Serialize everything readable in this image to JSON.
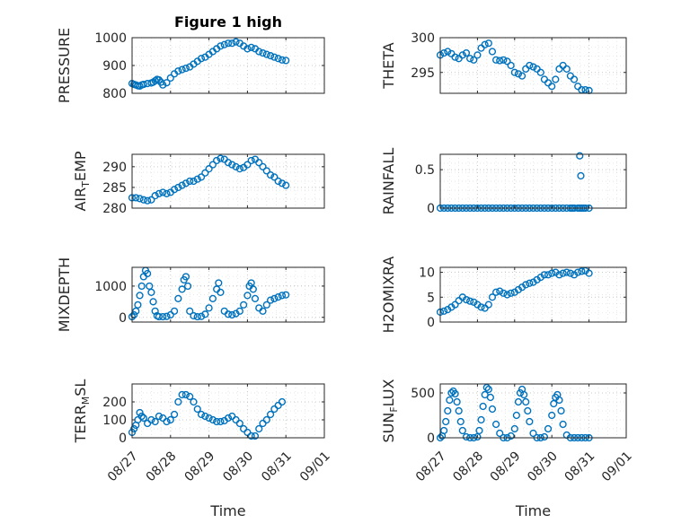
{
  "figure": {
    "title": "Figure 1 high",
    "width": 778,
    "height": 583
  },
  "colors": {
    "marker": "#0072BD",
    "axis": "#262626",
    "grid": "#c8c8c8"
  },
  "chart_data": [
    {
      "type": "scatter",
      "id": "pressure",
      "ylabel": "PRESSURE",
      "ylabel_main": "PRESSURE",
      "ylabel_sub": "",
      "ylabel_tail": "",
      "title": "Figure 1 high",
      "x_range": [
        "08/27",
        "08/31"
      ],
      "ylim": [
        800,
        1000
      ],
      "yticks": [
        "800",
        "900",
        "1000"
      ],
      "xticks": [],
      "xlabel": "",
      "x": [
        0.0,
        0.05,
        0.1,
        0.15,
        0.2,
        0.25,
        0.3,
        0.4,
        0.5,
        0.55,
        0.6,
        0.65,
        0.7,
        0.75,
        0.8,
        0.9,
        1.0,
        1.1,
        1.2,
        1.3,
        1.4,
        1.5,
        1.6,
        1.7,
        1.8,
        1.9,
        2.0,
        2.1,
        2.2,
        2.3,
        2.4,
        2.5,
        2.6,
        2.7,
        2.8,
        2.9,
        3.0,
        3.1,
        3.2,
        3.3,
        3.4,
        3.5,
        3.6,
        3.7,
        3.8,
        3.9,
        4.0
      ],
      "y": [
        835,
        832,
        830,
        827,
        826,
        830,
        832,
        835,
        837,
        840,
        845,
        850,
        848,
        840,
        830,
        838,
        855,
        870,
        880,
        885,
        890,
        895,
        905,
        915,
        925,
        930,
        940,
        950,
        960,
        970,
        975,
        980,
        980,
        985,
        980,
        970,
        960,
        965,
        960,
        950,
        945,
        940,
        935,
        930,
        925,
        920,
        918
      ]
    },
    {
      "type": "scatter",
      "id": "theta",
      "ylabel": "THETA",
      "ylabel_main": "THETA",
      "ylabel_sub": "",
      "ylabel_tail": "",
      "x_range": [
        "08/27",
        "08/31"
      ],
      "ylim": [
        292,
        300
      ],
      "yticks": [
        "295",
        "300"
      ],
      "xticks": [],
      "xlabel": "",
      "x": [
        0.0,
        0.1,
        0.2,
        0.3,
        0.4,
        0.5,
        0.6,
        0.7,
        0.8,
        0.9,
        1.0,
        1.1,
        1.2,
        1.3,
        1.4,
        1.5,
        1.6,
        1.7,
        1.8,
        1.9,
        2.0,
        2.1,
        2.2,
        2.3,
        2.4,
        2.5,
        2.6,
        2.7,
        2.8,
        2.9,
        3.0,
        3.1,
        3.2,
        3.3,
        3.4,
        3.5,
        3.6,
        3.7,
        3.8,
        3.9,
        4.0
      ],
      "y": [
        297.5,
        297.8,
        298.0,
        297.7,
        297.2,
        297.0,
        297.5,
        297.8,
        297.0,
        296.8,
        297.5,
        298.5,
        299.0,
        299.2,
        298.0,
        296.8,
        296.7,
        296.8,
        296.6,
        296.0,
        295.0,
        294.8,
        294.5,
        295.5,
        296.0,
        295.8,
        295.5,
        295.0,
        294.0,
        293.5,
        293.0,
        294.0,
        295.5,
        296.0,
        295.5,
        294.5,
        294.0,
        293.0,
        292.5,
        292.5,
        292.4
      ]
    },
    {
      "type": "scatter",
      "id": "air_temp",
      "ylabel": "AIR_TEMP",
      "ylabel_main": "AIR",
      "ylabel_sub": "T",
      "ylabel_tail": "EMP",
      "x_range": [
        "08/27",
        "08/31"
      ],
      "ylim": [
        280,
        293
      ],
      "yticks": [
        "280",
        "285",
        "290"
      ],
      "xticks": [],
      "xlabel": "",
      "x": [
        0.0,
        0.1,
        0.2,
        0.3,
        0.4,
        0.5,
        0.6,
        0.7,
        0.8,
        0.9,
        1.0,
        1.1,
        1.2,
        1.3,
        1.4,
        1.5,
        1.6,
        1.7,
        1.8,
        1.9,
        2.0,
        2.1,
        2.2,
        2.3,
        2.4,
        2.5,
        2.6,
        2.7,
        2.8,
        2.9,
        3.0,
        3.1,
        3.2,
        3.3,
        3.4,
        3.5,
        3.6,
        3.7,
        3.8,
        3.9,
        4.0
      ],
      "y": [
        282.5,
        282.5,
        282.3,
        282.0,
        281.8,
        282.0,
        283.0,
        283.5,
        283.8,
        283.5,
        283.8,
        284.5,
        285.0,
        285.5,
        286.0,
        286.5,
        286.5,
        287.0,
        287.5,
        288.5,
        289.5,
        290.5,
        291.5,
        292.0,
        291.8,
        291.0,
        290.5,
        290.0,
        289.5,
        289.8,
        290.5,
        291.5,
        291.8,
        291.0,
        290.0,
        289.0,
        288.0,
        287.5,
        286.5,
        286.0,
        285.5
      ]
    },
    {
      "type": "scatter",
      "id": "rainfall",
      "ylabel": "RAINFALL",
      "ylabel_main": "RAINFALL",
      "ylabel_sub": "",
      "ylabel_tail": "",
      "x_range": [
        "08/27",
        "08/31"
      ],
      "ylim": [
        0,
        0.7
      ],
      "yticks": [
        "0",
        "0.5"
      ],
      "xticks": [],
      "xlabel": "",
      "x": [
        0.0,
        0.1,
        0.2,
        0.3,
        0.4,
        0.5,
        0.6,
        0.7,
        0.8,
        0.9,
        1.0,
        1.1,
        1.2,
        1.3,
        1.4,
        1.5,
        1.6,
        1.7,
        1.8,
        1.9,
        2.0,
        2.1,
        2.2,
        2.3,
        2.4,
        2.5,
        2.6,
        2.7,
        2.8,
        2.9,
        3.0,
        3.1,
        3.2,
        3.3,
        3.4,
        3.5,
        3.55,
        3.6,
        3.7,
        3.75,
        3.8,
        3.85,
        3.9,
        4.0,
        3.75,
        3.78
      ],
      "y": [
        0,
        0,
        0,
        0,
        0,
        0,
        0,
        0,
        0,
        0,
        0,
        0,
        0,
        0,
        0,
        0,
        0,
        0,
        0,
        0,
        0,
        0,
        0,
        0,
        0,
        0,
        0,
        0,
        0,
        0,
        0,
        0,
        0,
        0,
        0,
        0,
        0,
        0,
        0,
        0,
        0,
        0,
        0,
        0,
        0.68,
        0.42
      ]
    },
    {
      "type": "scatter",
      "id": "mixdepth",
      "ylabel": "MIXDEPTH",
      "ylabel_main": "MIXDEPTH",
      "ylabel_sub": "",
      "ylabel_tail": "",
      "x_range": [
        "08/27",
        "08/31"
      ],
      "ylim": [
        -150,
        1600
      ],
      "yticks": [
        "0",
        "1000"
      ],
      "xticks": [],
      "xlabel": "",
      "x": [
        0.0,
        0.05,
        0.1,
        0.15,
        0.2,
        0.25,
        0.3,
        0.35,
        0.4,
        0.45,
        0.5,
        0.55,
        0.6,
        0.65,
        0.7,
        0.8,
        0.9,
        1.0,
        1.1,
        1.2,
        1.3,
        1.35,
        1.4,
        1.45,
        1.5,
        1.6,
        1.7,
        1.8,
        1.9,
        2.0,
        2.1,
        2.2,
        2.25,
        2.3,
        2.4,
        2.5,
        2.6,
        2.7,
        2.8,
        2.9,
        3.0,
        3.05,
        3.1,
        3.15,
        3.2,
        3.3,
        3.4,
        3.5,
        3.6,
        3.7,
        3.8,
        3.9,
        4.0
      ],
      "y": [
        20,
        80,
        200,
        400,
        700,
        1000,
        1300,
        1500,
        1400,
        1000,
        800,
        500,
        200,
        50,
        20,
        20,
        30,
        80,
        200,
        600,
        900,
        1200,
        1300,
        1000,
        200,
        50,
        20,
        30,
        100,
        300,
        600,
        900,
        1100,
        800,
        200,
        100,
        80,
        120,
        200,
        400,
        700,
        1000,
        1100,
        900,
        600,
        300,
        200,
        400,
        550,
        600,
        650,
        700,
        720
      ]
    },
    {
      "type": "scatter",
      "id": "h2omixra",
      "ylabel": "H2OMIXRA",
      "ylabel_main": "H2OMIXRA",
      "ylabel_sub": "",
      "ylabel_tail": "",
      "x_range": [
        "08/27",
        "08/31"
      ],
      "ylim": [
        0,
        11
      ],
      "yticks": [
        "0",
        "5",
        "10"
      ],
      "xticks": [],
      "xlabel": "",
      "x": [
        0.0,
        0.1,
        0.2,
        0.3,
        0.4,
        0.5,
        0.6,
        0.7,
        0.8,
        0.9,
        1.0,
        1.1,
        1.2,
        1.3,
        1.4,
        1.5,
        1.6,
        1.7,
        1.8,
        1.9,
        2.0,
        2.1,
        2.2,
        2.3,
        2.4,
        2.5,
        2.6,
        2.7,
        2.8,
        2.9,
        3.0,
        3.1,
        3.2,
        3.3,
        3.4,
        3.5,
        3.6,
        3.7,
        3.8,
        3.9,
        4.0
      ],
      "y": [
        2.0,
        2.2,
        2.5,
        3.0,
        3.5,
        4.3,
        5.0,
        4.5,
        4.2,
        4.0,
        3.5,
        3.0,
        2.8,
        3.5,
        5.0,
        6.0,
        6.2,
        5.8,
        5.5,
        5.8,
        6.0,
        6.5,
        7.0,
        7.5,
        7.8,
        8.0,
        8.5,
        9.0,
        9.5,
        9.5,
        9.8,
        10.0,
        9.5,
        9.8,
        10.0,
        9.8,
        9.5,
        10.0,
        10.2,
        10.3,
        9.8
      ]
    },
    {
      "type": "scatter",
      "id": "terr_msl",
      "ylabel": "TERR_MSL",
      "ylabel_main": "TERR",
      "ylabel_sub": "M",
      "ylabel_tail": "SL",
      "x_range": [
        "08/27",
        "08/31"
      ],
      "ylim": [
        0,
        300
      ],
      "yticks": [
        "0",
        "100",
        "200"
      ],
      "xticks": [
        "08/27",
        "08/28",
        "08/29",
        "08/30",
        "08/31",
        "09/01"
      ],
      "xlabel": "Time",
      "x": [
        0.0,
        0.05,
        0.1,
        0.15,
        0.2,
        0.25,
        0.3,
        0.4,
        0.5,
        0.6,
        0.7,
        0.8,
        0.9,
        1.0,
        1.1,
        1.2,
        1.3,
        1.4,
        1.5,
        1.6,
        1.7,
        1.8,
        1.9,
        2.0,
        2.1,
        2.2,
        2.3,
        2.4,
        2.5,
        2.6,
        2.7,
        2.8,
        2.9,
        3.0,
        3.1,
        3.2,
        3.3,
        3.4,
        3.5,
        3.6,
        3.7,
        3.8,
        3.9
      ],
      "y": [
        30,
        50,
        70,
        100,
        140,
        120,
        110,
        80,
        100,
        90,
        120,
        110,
        90,
        100,
        130,
        200,
        240,
        240,
        230,
        200,
        160,
        130,
        120,
        110,
        100,
        90,
        90,
        95,
        110,
        120,
        100,
        80,
        50,
        30,
        10,
        10,
        50,
        80,
        100,
        130,
        160,
        180,
        200
      ]
    },
    {
      "type": "scatter",
      "id": "sun_flux",
      "ylabel": "SUN_FLUX",
      "ylabel_main": "SUN",
      "ylabel_sub": "F",
      "ylabel_tail": "LUX",
      "x_range": [
        "08/27",
        "08/31"
      ],
      "ylim": [
        0,
        600
      ],
      "yticks": [
        "0",
        "500"
      ],
      "xticks": [
        "08/27",
        "08/28",
        "08/29",
        "08/30",
        "08/31",
        "09/01"
      ],
      "xlabel": "Time",
      "x": [
        0.0,
        0.05,
        0.1,
        0.15,
        0.2,
        0.25,
        0.3,
        0.35,
        0.4,
        0.45,
        0.5,
        0.55,
        0.6,
        0.7,
        0.8,
        0.9,
        1.0,
        1.05,
        1.1,
        1.15,
        1.2,
        1.25,
        1.3,
        1.35,
        1.4,
        1.5,
        1.6,
        1.7,
        1.8,
        1.9,
        2.0,
        2.05,
        2.1,
        2.15,
        2.2,
        2.25,
        2.3,
        2.35,
        2.4,
        2.5,
        2.6,
        2.7,
        2.8,
        2.9,
        3.0,
        3.05,
        3.1,
        3.15,
        3.2,
        3.25,
        3.3,
        3.4,
        3.5,
        3.6,
        3.7,
        3.8,
        3.9,
        4.0
      ],
      "y": [
        0,
        20,
        80,
        180,
        300,
        420,
        500,
        520,
        490,
        400,
        300,
        180,
        80,
        10,
        0,
        0,
        10,
        80,
        200,
        350,
        480,
        560,
        540,
        450,
        320,
        150,
        50,
        0,
        0,
        20,
        100,
        250,
        400,
        500,
        540,
        480,
        400,
        300,
        180,
        50,
        0,
        0,
        10,
        100,
        250,
        380,
        450,
        480,
        420,
        300,
        150,
        30,
        0,
        0,
        0,
        0,
        0,
        0
      ]
    }
  ]
}
